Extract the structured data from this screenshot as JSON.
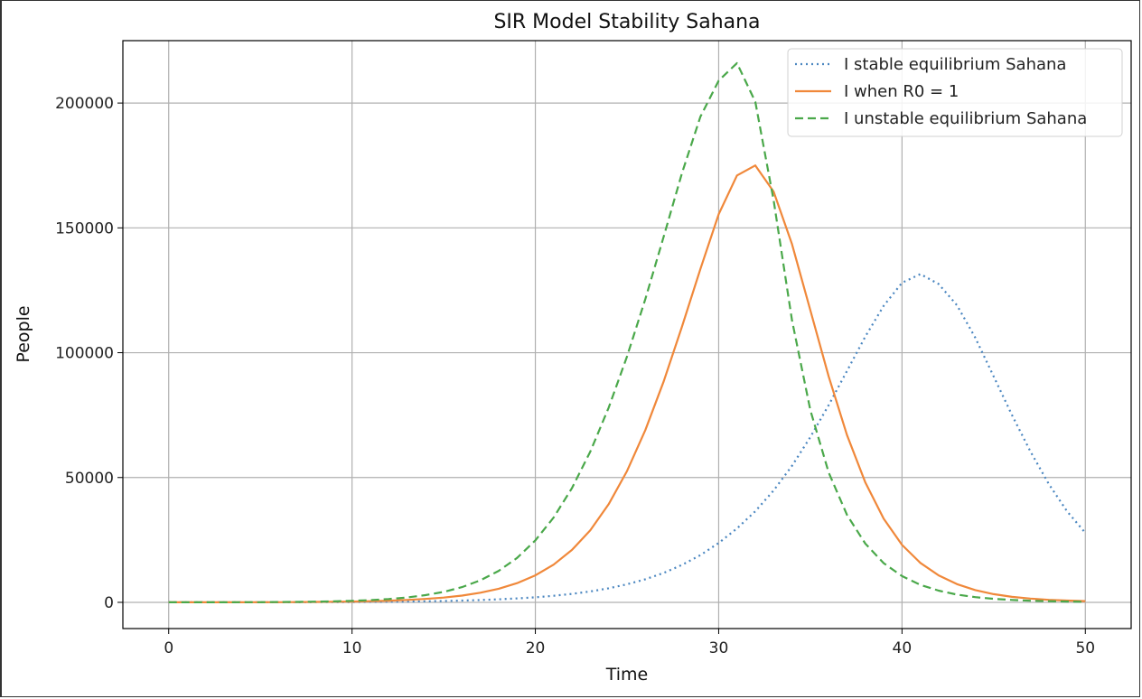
{
  "chart_data": {
    "type": "line",
    "title": "SIR Model Stability Sahana",
    "xlabel": "Time",
    "ylabel": "People",
    "xlim": [
      -2.5,
      52.5
    ],
    "ylim": [
      -10500,
      225000
    ],
    "xticks": [
      0,
      10,
      20,
      30,
      40,
      50
    ],
    "yticks": [
      0,
      50000,
      100000,
      150000,
      200000
    ],
    "grid": true,
    "legend_position": "top-right",
    "x": [
      0,
      1,
      2,
      3,
      4,
      5,
      6,
      7,
      8,
      9,
      10,
      11,
      12,
      13,
      14,
      15,
      16,
      17,
      18,
      19,
      20,
      21,
      22,
      23,
      24,
      25,
      26,
      27,
      28,
      29,
      30,
      31,
      32,
      33,
      34,
      35,
      36,
      37,
      38,
      39,
      40,
      41,
      42,
      43,
      44,
      45,
      46,
      47,
      48,
      49,
      50
    ],
    "series": [
      {
        "name": "I stable equilibrium Sahana",
        "color": "#4a86c0",
        "style": "dotted",
        "values": [
          10,
          13,
          17,
          22,
          29,
          38,
          50,
          65,
          85,
          112,
          146,
          190,
          248,
          325,
          420,
          550,
          715,
          930,
          1210,
          1570,
          2030,
          2620,
          3390,
          4370,
          5620,
          7210,
          9240,
          11800,
          15000,
          18900,
          23800,
          29600,
          36500,
          44800,
          54700,
          66200,
          79000,
          92700,
          106500,
          118800,
          128000,
          131500,
          127500,
          119000,
          106000,
          90500,
          75000,
          60500,
          47500,
          36500,
          27800
        ]
      },
      {
        "name": "I when R0 = 1",
        "color": "#f0883a",
        "style": "solid",
        "values": [
          10,
          14,
          20,
          28,
          40,
          57,
          81,
          115,
          163,
          232,
          330,
          470,
          670,
          950,
          1350,
          1920,
          2720,
          3850,
          5450,
          7680,
          10800,
          15100,
          21000,
          28900,
          39300,
          52600,
          69000,
          88500,
          110500,
          133500,
          155500,
          171000,
          175000,
          164500,
          143500,
          117000,
          90500,
          67000,
          48000,
          33500,
          23000,
          15800,
          10800,
          7300,
          4900,
          3300,
          2200,
          1500,
          1000,
          700,
          480
        ]
      },
      {
        "name": "I unstable equilibrium Sahana",
        "color": "#4aa84a",
        "style": "dashed",
        "values": [
          10,
          15,
          23,
          35,
          53,
          80,
          120,
          180,
          270,
          400,
          600,
          890,
          1320,
          1950,
          2870,
          4200,
          6100,
          8800,
          12600,
          17800,
          24800,
          34000,
          45800,
          60400,
          78000,
          98500,
          121500,
          146500,
          172000,
          194500,
          209000,
          216000,
          200500,
          161000,
          113000,
          77000,
          52000,
          35000,
          23500,
          15700,
          10500,
          7000,
          4700,
          3100,
          2100,
          1400,
          950,
          650,
          450,
          300,
          200
        ]
      }
    ]
  }
}
